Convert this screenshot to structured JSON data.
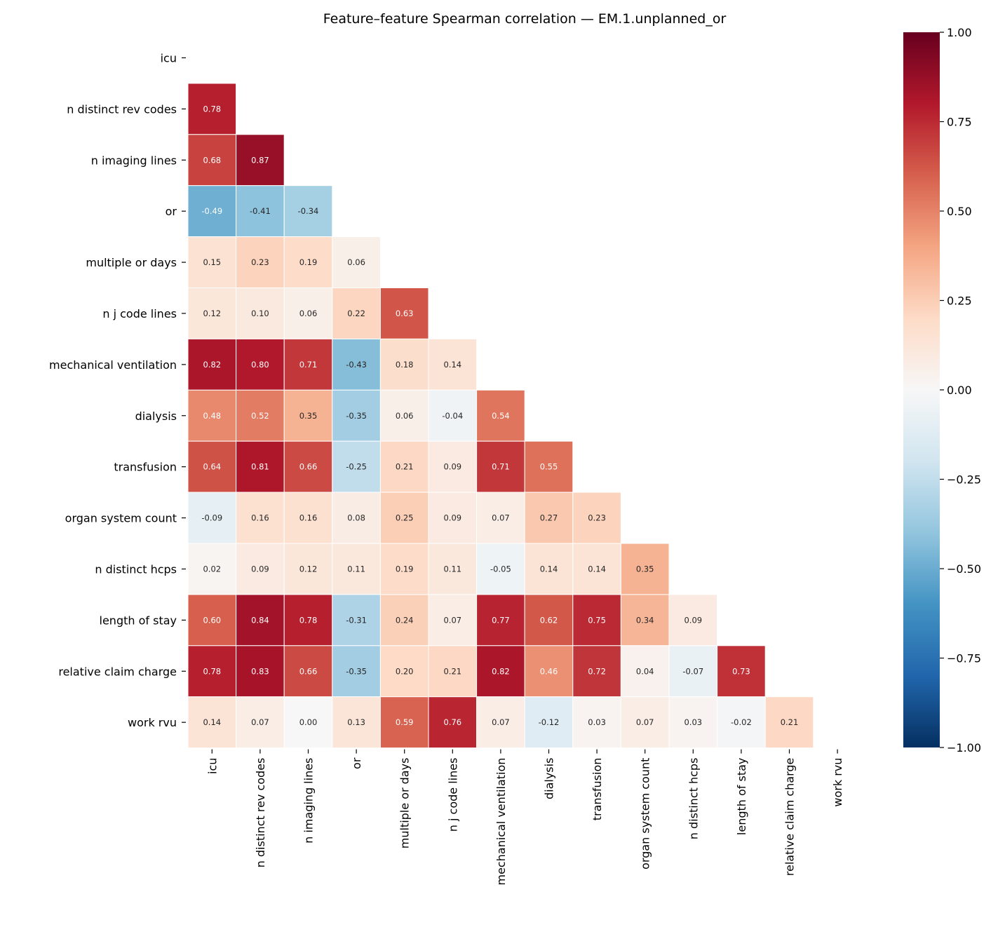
{
  "chart_data": {
    "type": "heatmap",
    "title": "Feature–feature Spearman correlation — EM.1.unplanned_or",
    "labels": [
      "icu",
      "n distinct rev codes",
      "n imaging lines",
      "or",
      "multiple or days",
      "n j code lines",
      "mechanical ventilation",
      "dialysis",
      "transfusion",
      "organ system count",
      "n distinct hcps",
      "length of stay",
      "relative claim charge",
      "work rvu"
    ],
    "mask": "upper triangle including diagonal",
    "lower_triangle": [
      [],
      [
        0.78
      ],
      [
        0.68,
        0.87
      ],
      [
        -0.49,
        -0.41,
        -0.34
      ],
      [
        0.15,
        0.23,
        0.19,
        0.06
      ],
      [
        0.12,
        0.1,
        0.06,
        0.22,
        0.63
      ],
      [
        0.82,
        0.8,
        0.71,
        -0.43,
        0.18,
        0.14
      ],
      [
        0.48,
        0.52,
        0.35,
        -0.35,
        0.06,
        -0.04,
        0.54
      ],
      [
        0.64,
        0.81,
        0.66,
        -0.25,
        0.21,
        0.09,
        0.71,
        0.55
      ],
      [
        -0.09,
        0.16,
        0.16,
        0.08,
        0.25,
        0.09,
        0.07,
        0.27,
        0.23
      ],
      [
        0.02,
        0.09,
        0.12,
        0.11,
        0.19,
        0.11,
        -0.05,
        0.14,
        0.14,
        0.35
      ],
      [
        0.6,
        0.84,
        0.78,
        -0.31,
        0.24,
        0.07,
        0.77,
        0.62,
        0.75,
        0.34,
        0.09
      ],
      [
        0.78,
        0.83,
        0.66,
        -0.35,
        0.2,
        0.21,
        0.82,
        0.46,
        0.72,
        0.04,
        -0.07,
        0.73
      ],
      [
        0.14,
        0.07,
        0.0,
        0.13,
        0.59,
        0.76,
        0.07,
        -0.12,
        0.03,
        0.07,
        0.03,
        -0.02,
        0.21
      ]
    ],
    "colormap": "RdBu_r",
    "vmin": -1.0,
    "vmax": 1.0,
    "colorbar_ticks": [
      1.0,
      0.75,
      0.5,
      0.25,
      0.0,
      -0.25,
      -0.5,
      -0.75,
      -1.0
    ],
    "colorbar_tick_labels": [
      "1.00",
      "0.75",
      "0.50",
      "0.25",
      "0.00",
      "−0.25",
      "−0.50",
      "−0.75",
      "−1.00"
    ],
    "annotation_format": "0.00"
  }
}
